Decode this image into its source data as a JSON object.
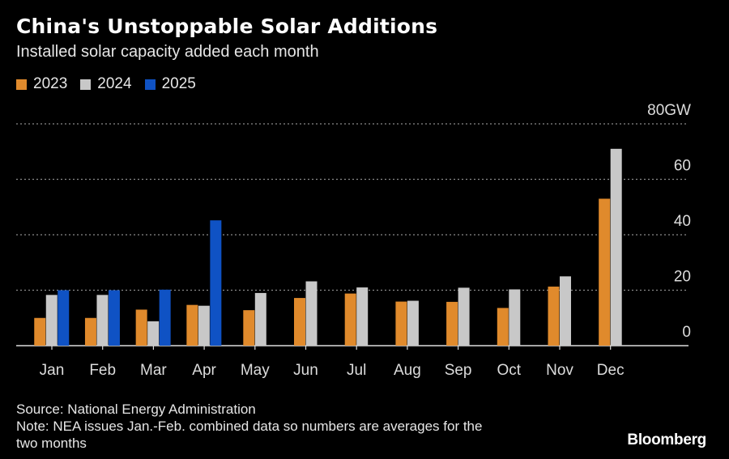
{
  "title": "China's Unstoppable Solar Additions",
  "subtitle": "Installed solar capacity added each month",
  "colors": {
    "2023": "#e08a2c",
    "2024": "#c8c8c8",
    "2025": "#0f52c4",
    "grid": "#8a8a8a",
    "axis": "#dcdcdc"
  },
  "chart_data": {
    "type": "bar",
    "categories": [
      "Jan",
      "Feb",
      "Mar",
      "Apr",
      "May",
      "Jun",
      "Jul",
      "Aug",
      "Sep",
      "Oct",
      "Nov",
      "Dec"
    ],
    "series": [
      {
        "name": "2023",
        "values": [
          10,
          10,
          13,
          14.7,
          12.8,
          17.2,
          18.8,
          15.9,
          15.8,
          13.6,
          21.3,
          53
        ]
      },
      {
        "name": "2024",
        "values": [
          18.3,
          18.3,
          8.8,
          14.4,
          19,
          23.2,
          21,
          16.2,
          20.9,
          20.3,
          25,
          71
        ]
      },
      {
        "name": "2025",
        "values": [
          20,
          20,
          20.2,
          45.2,
          null,
          null,
          null,
          null,
          null,
          null,
          null,
          null
        ]
      }
    ],
    "yticks": [
      "0",
      "20",
      "40",
      "60",
      "80GW"
    ],
    "ylim": [
      0,
      80
    ],
    "legend_position": "top-left",
    "grid": true
  },
  "footer": {
    "source": "Source: National Energy Administration",
    "note_line1": "Note: NEA issues Jan.-Feb. combined data so numbers are averages for the",
    "note_line2": "two months"
  },
  "brand": "Bloomberg"
}
